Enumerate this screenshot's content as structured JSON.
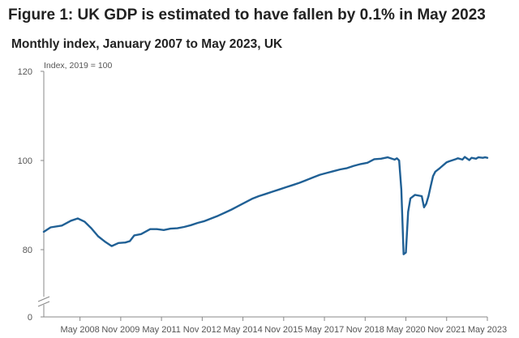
{
  "header": {
    "title": "Figure 1: UK GDP is estimated to have fallen by 0.1% in May 2023",
    "subtitle": "Monthly index, January 2007 to May 2023, UK"
  },
  "colors": {
    "series": "#206095",
    "axis": "#888888",
    "text": "#222222",
    "tick_text": "#555555",
    "background": "#ffffff"
  },
  "chart_data": {
    "type": "line",
    "title": "Figure 1: UK GDP is estimated to have fallen by 0.1% in May 2023",
    "subtitle": "Monthly index, January 2007 to May 2023, UK",
    "ylabel": "Index, 2019 = 100",
    "xlabel": "",
    "ylim": [
      0,
      120
    ],
    "y_axis_break": true,
    "y_ticks": [
      0,
      80,
      100,
      120
    ],
    "x_ticks": [
      "May 2008",
      "Nov 2009",
      "May 2011",
      "Nov 2012",
      "May 2014",
      "Nov 2015",
      "May 2017",
      "Nov 2018",
      "May 2020",
      "Nov 2021",
      "May 2023"
    ],
    "x_range": [
      "2007-01",
      "2023-05"
    ],
    "grid": false,
    "legend": "none",
    "series": [
      {
        "x": [
          "2007-01",
          "2007-04",
          "2007-09",
          "2008-01",
          "2008-04",
          "2008-07",
          "2008-10",
          "2009-01",
          "2009-04",
          "2009-07",
          "2009-10",
          "2010-01",
          "2010-03",
          "2010-05",
          "2010-08",
          "2010-12",
          "2011-03",
          "2011-06",
          "2011-09",
          "2011-12",
          "2012-03",
          "2012-06",
          "2012-09",
          "2012-12",
          "2013-03",
          "2013-06",
          "2013-09",
          "2013-12",
          "2014-03",
          "2014-06",
          "2014-09",
          "2014-12",
          "2015-03",
          "2015-06",
          "2015-09",
          "2015-12",
          "2016-03",
          "2016-06",
          "2016-09",
          "2016-12",
          "2017-03",
          "2017-06",
          "2017-09",
          "2017-12",
          "2018-03",
          "2018-06",
          "2018-09",
          "2018-12",
          "2019-03",
          "2019-06",
          "2019-09",
          "2019-12",
          "2020-01",
          "2020-02",
          "2020-03",
          "2020-04",
          "2020-05",
          "2020-06",
          "2020-07",
          "2020-09",
          "2020-12",
          "2021-01",
          "2021-02",
          "2021-03",
          "2021-04",
          "2021-05",
          "2021-06",
          "2021-08",
          "2021-11",
          "2021-12",
          "2022-03",
          "2022-04",
          "2022-06",
          "2022-07",
          "2022-09",
          "2022-10",
          "2022-12",
          "2023-01",
          "2023-03",
          "2023-04",
          "2023-05"
        ],
        "values": [
          84.0,
          85.0,
          85.4,
          86.5,
          87.0,
          86.3,
          84.8,
          83.0,
          81.8,
          80.8,
          81.5,
          81.6,
          81.9,
          83.2,
          83.5,
          84.6,
          84.6,
          84.4,
          84.7,
          84.8,
          85.1,
          85.5,
          86.0,
          86.4,
          87.0,
          87.6,
          88.3,
          89.0,
          89.8,
          90.6,
          91.4,
          92.0,
          92.5,
          93.0,
          93.5,
          94.0,
          94.5,
          95.0,
          95.6,
          96.2,
          96.8,
          97.2,
          97.6,
          98.0,
          98.3,
          98.8,
          99.2,
          99.5,
          100.3,
          100.4,
          100.7,
          100.2,
          100.5,
          100.0,
          93.5,
          74.5,
          76.5,
          88.5,
          91.5,
          92.3,
          92.0,
          89.5,
          90.3,
          92.0,
          94.3,
          96.5,
          97.5,
          98.3,
          99.6,
          99.8,
          100.3,
          100.5,
          100.2,
          100.8,
          100.1,
          100.6,
          100.4,
          100.7,
          100.6,
          100.7,
          100.6
        ]
      }
    ]
  }
}
